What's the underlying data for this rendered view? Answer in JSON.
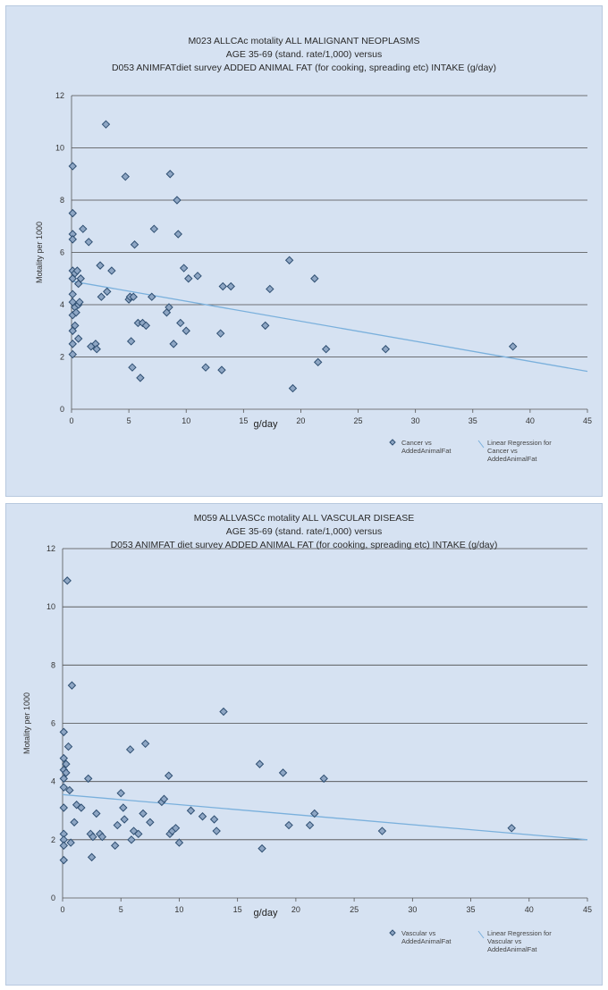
{
  "chart_data": [
    {
      "type": "scatter",
      "title_lines": [
        "M023 ALLCAc motality ALL MALIGNANT NEOPLASMS",
        "AGE 35-69 (stand. rate/1,000) versus",
        "D053 ANIMFATdiet survey ADDED ANIMAL FAT (for cooking, spreading etc) INTAKE (g/day)"
      ],
      "xlabel": "g/day",
      "ylabel": "Motality per 1000",
      "xlim": [
        0,
        45
      ],
      "ylim": [
        0,
        12
      ],
      "xticks": [
        0,
        5,
        10,
        15,
        20,
        25,
        30,
        35,
        40,
        45
      ],
      "yticks": [
        0,
        2,
        4,
        6,
        8,
        10,
        12
      ],
      "grid": "horizontal",
      "legend_position": "bottom-right",
      "legend": {
        "points_label_lines": [
          "Cancer vs",
          "AddedAnimalFat"
        ],
        "line_label_lines": [
          "Linear Regression for",
          "Cancer vs",
          "AddedAnimalFat"
        ]
      },
      "colors": {
        "marker_fill": "#8ea6c4",
        "marker_stroke": "#2f4f72",
        "trend": "#7ab0dc",
        "grid": "#4a4a4a"
      },
      "trendline": {
        "x": [
          0,
          45
        ],
        "y": [
          4.9,
          1.45
        ]
      },
      "points": {
        "x": [
          0.1,
          0.1,
          0.1,
          0.1,
          0.1,
          0.1,
          0.1,
          0.1,
          0.1,
          0.1,
          0.1,
          0.1,
          0.3,
          0.3,
          0.3,
          0.4,
          0.5,
          0.6,
          0.6,
          0.6,
          0.7,
          0.8,
          1,
          1.5,
          1.7,
          2.1,
          2.2,
          2.5,
          2.6,
          3,
          3.1,
          3.5,
          4.7,
          5,
          5.1,
          5.2,
          5.3,
          5.4,
          5.5,
          5.8,
          6,
          6.2,
          6.5,
          7,
          7.2,
          8.3,
          8.5,
          8.6,
          8.9,
          9.2,
          9.3,
          9.5,
          9.8,
          10,
          10.2,
          11,
          11.7,
          13,
          13.1,
          13.2,
          13.9,
          16.9,
          17.3,
          19,
          19.3,
          21.2,
          21.5,
          22.2,
          27.4,
          38.5
        ],
        "y": [
          9.3,
          7.5,
          6.7,
          6.5,
          5.3,
          5.0,
          4.4,
          4.1,
          3.6,
          2.5,
          2.1,
          3.0,
          5.2,
          3.9,
          3.2,
          3.7,
          5.3,
          4.8,
          4.0,
          2.7,
          4.1,
          5.0,
          6.9,
          6.4,
          2.4,
          2.5,
          2.3,
          5.5,
          4.3,
          10.9,
          4.5,
          5.3,
          8.9,
          4.2,
          4.3,
          2.6,
          1.6,
          4.3,
          6.3,
          3.3,
          1.2,
          3.3,
          3.2,
          4.3,
          6.9,
          3.7,
          3.9,
          9.0,
          2.5,
          8.0,
          6.7,
          3.3,
          5.4,
          3.0,
          5.0,
          5.1,
          1.6,
          2.9,
          1.5,
          4.7,
          4.7,
          3.2,
          4.6,
          5.7,
          0.8,
          5.0,
          1.8,
          2.3,
          2.3,
          2.4
        ]
      }
    },
    {
      "type": "scatter",
      "title_lines": [
        "M059 ALLVASCc    motality ALL VASCULAR DISEASE",
        "AGE 35-69 (stand. rate/1,000) versus",
        "D053 ANIMFAT diet survey ADDED ANIMAL FAT (for cooking, spreading etc) INTAKE (g/day)"
      ],
      "xlabel": "g/day",
      "ylabel": "Motality per 1000",
      "xlim": [
        0,
        45
      ],
      "ylim": [
        0,
        12
      ],
      "xticks": [
        0,
        5,
        10,
        15,
        20,
        25,
        30,
        35,
        40,
        45
      ],
      "yticks": [
        0,
        2,
        4,
        6,
        8,
        10,
        12
      ],
      "grid": "horizontal",
      "legend_position": "bottom-right",
      "legend": {
        "points_label_lines": [
          "Vascular vs",
          "AddedAnimalFat"
        ],
        "line_label_lines": [
          "Linear Regression for",
          "Vascular vs",
          "AddedAnimalFat"
        ]
      },
      "colors": {
        "marker_fill": "#8ea6c4",
        "marker_stroke": "#2f4f72",
        "trend": "#7ab0dc",
        "grid": "#4a4a4a"
      },
      "trendline": {
        "x": [
          0,
          45
        ],
        "y": [
          3.55,
          2.0
        ]
      },
      "points": {
        "x": [
          0.1,
          0.1,
          0.1,
          0.1,
          0.1,
          0.1,
          0.1,
          0.1,
          0.1,
          0.1,
          0.3,
          0.3,
          0.4,
          0.5,
          0.6,
          0.7,
          0.8,
          1,
          1.2,
          1.6,
          2.2,
          2.4,
          2.5,
          2.6,
          2.9,
          3.2,
          3.4,
          4.5,
          4.7,
          5,
          5.2,
          5.3,
          5.8,
          5.9,
          6.1,
          6.5,
          6.9,
          7.1,
          7.5,
          8.5,
          8.7,
          9.1,
          9.2,
          9.4,
          9.7,
          10,
          11,
          12,
          13,
          13.2,
          13.8,
          16.9,
          17.1,
          18.9,
          19.4,
          21.2,
          21.6,
          22.4,
          27.4,
          38.5
        ],
        "y": [
          5.7,
          4.8,
          4.4,
          4.1,
          3.8,
          3.1,
          2.2,
          2.0,
          1.8,
          1.3,
          4.6,
          4.3,
          10.9,
          5.2,
          3.7,
          1.9,
          7.3,
          2.6,
          3.2,
          3.1,
          4.1,
          2.2,
          1.4,
          2.1,
          2.9,
          2.2,
          2.1,
          1.8,
          2.5,
          3.6,
          3.1,
          2.7,
          5.1,
          2.0,
          2.3,
          2.2,
          2.9,
          5.3,
          2.6,
          3.3,
          3.4,
          4.2,
          2.2,
          2.3,
          2.4,
          1.9,
          3.0,
          2.8,
          2.7,
          2.3,
          6.4,
          4.6,
          1.7,
          4.3,
          2.5,
          2.5,
          2.9,
          4.1,
          2.3,
          2.4
        ]
      }
    }
  ]
}
